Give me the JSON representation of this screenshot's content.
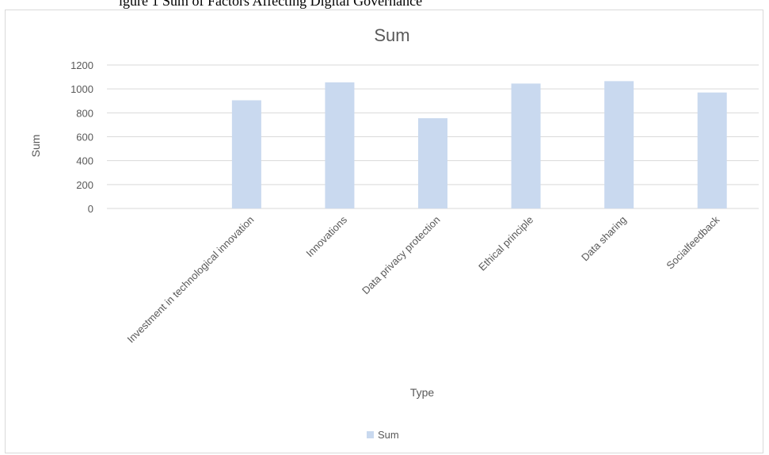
{
  "top_cut_text": "igure 1 Sum of Factors Affecting Digital Governance",
  "chart_data": {
    "type": "bar",
    "title": "Sum",
    "xlabel": "Type",
    "ylabel": "Sum",
    "ylim": [
      0,
      1200
    ],
    "yticks": [
      0,
      200,
      400,
      600,
      800,
      1000,
      1200
    ],
    "grid": true,
    "legend_position": "bottom",
    "categories": [
      "",
      "Investment in technological innovation",
      "Innovations",
      "Data privacy protection",
      "Ethical principle",
      "Data sharing",
      "Socialfeedback"
    ],
    "series": [
      {
        "name": "Sum",
        "values": [
          null,
          905,
          1055,
          755,
          1045,
          1065,
          970
        ]
      }
    ],
    "colors": {
      "bar": "#c9d9ef",
      "grid": "#d9d9d9",
      "text": "#595959",
      "title": "#595959"
    }
  }
}
